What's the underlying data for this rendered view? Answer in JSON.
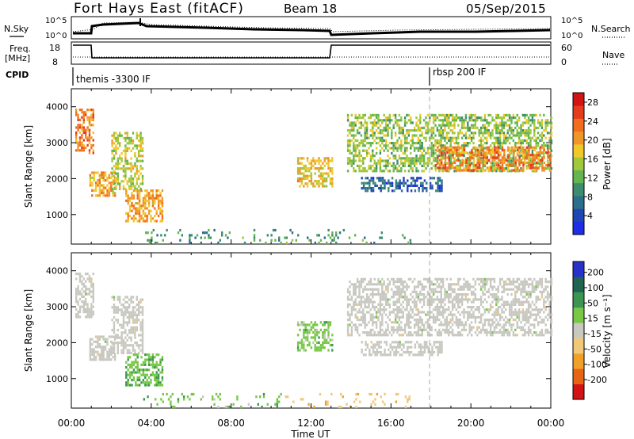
{
  "header": {
    "title": "Fort Hays East (fitACF)",
    "beam": "Beam 18",
    "date": "05/Sep/2015"
  },
  "summary_panels": {
    "nsky_label": "N.Sky",
    "nsearch_label": "N.Search",
    "freq_label_top": "Freq.",
    "freq_label_unit": "[MHz]",
    "nave_label": "Nave",
    "cpid_label": "CPID",
    "noise_ticks": [
      "10^5",
      "10^0"
    ],
    "freq_ticks": [
      "18",
      "8"
    ],
    "nave_ticks": [
      "60",
      "0"
    ],
    "cpid_modes": [
      {
        "label": "themis -3300 IF",
        "start_hour": 0
      },
      {
        "label": "rbsp 200 IF",
        "start_hour": 18
      }
    ]
  },
  "colors": {
    "power_scale": [
      "#1e2de6",
      "#1e46b4",
      "#2d6e8c",
      "#3c8c6e",
      "#64b450",
      "#a0c83c",
      "#f0c828",
      "#f09628",
      "#f06e1e",
      "#e63c1e",
      "#d21414"
    ],
    "velocity_scale": [
      "#2832c8",
      "#1e6450",
      "#3c9650",
      "#78c846",
      "#c8c8c0",
      "#f0c878",
      "#f0a028",
      "#e66414",
      "#d21414"
    ],
    "ground_scatter": "#c8c8c0"
  },
  "chart_data": [
    {
      "type": "heatmap",
      "panel": "power",
      "xlabel": "Time UT",
      "ylabel": "Slant Range [km]",
      "x_ticks": [
        "00:00",
        "04:00",
        "08:00",
        "12:00",
        "16:00",
        "20:00",
        "00:00"
      ],
      "x_range_hours": [
        0,
        24
      ],
      "y_ticks": [
        1000,
        2000,
        3000,
        4000
      ],
      "y_range_km": [
        180,
        4500
      ],
      "colorbar_label": "Power [dB]",
      "colorbar_ticks": [
        4,
        8,
        12,
        16,
        20,
        24,
        28
      ],
      "colorbar_range": [
        0,
        30
      ],
      "regions": [
        {
          "t0": 0.2,
          "t1": 1.1,
          "r0": 2700,
          "r1": 3950,
          "v": 22
        },
        {
          "t0": 0.9,
          "t1": 2.2,
          "r0": 1500,
          "r1": 2200,
          "v": 20
        },
        {
          "t0": 2.0,
          "t1": 3.6,
          "r0": 1700,
          "r1": 3300,
          "v": 16
        },
        {
          "t0": 2.7,
          "t1": 4.6,
          "r0": 850,
          "r1": 1700,
          "v": 20
        },
        {
          "t0": 11.3,
          "t1": 13.1,
          "r0": 1800,
          "r1": 2600,
          "v": 18
        },
        {
          "t0": 13.8,
          "t1": 24.0,
          "r0": 2200,
          "r1": 3800,
          "v": 14
        },
        {
          "t0": 14.5,
          "t1": 18.5,
          "r0": 1650,
          "r1": 2050,
          "v": 6
        },
        {
          "t0": 18.2,
          "t1": 24.0,
          "r0": 2200,
          "r1": 2900,
          "v": 22
        },
        {
          "t0": 3.5,
          "t1": 17.0,
          "r0": 200,
          "r1": 600,
          "v": 10
        }
      ]
    },
    {
      "type": "heatmap",
      "panel": "velocity",
      "xlabel": "Time UT",
      "ylabel": "Slant Range [km]",
      "x_ticks": [
        "00:00",
        "04:00",
        "08:00",
        "12:00",
        "16:00",
        "20:00",
        "00:00"
      ],
      "x_range_hours": [
        0,
        24
      ],
      "y_ticks": [
        1000,
        2000,
        3000,
        4000
      ],
      "y_range_km": [
        180,
        4500
      ],
      "colorbar_label": "Velocity [m s⁻¹]",
      "colorbar_ticks": [
        200,
        100,
        50,
        15,
        -15,
        -50,
        -100,
        -200
      ],
      "regions": [
        {
          "t0": 0.2,
          "t1": 1.1,
          "r0": 2700,
          "r1": 3950,
          "v": 0,
          "gs": true
        },
        {
          "t0": 0.9,
          "t1": 2.2,
          "r0": 1500,
          "r1": 2200,
          "v": 0,
          "gs": true
        },
        {
          "t0": 2.0,
          "t1": 3.6,
          "r0": 1700,
          "r1": 3300,
          "v": 0,
          "gs": true
        },
        {
          "t0": 2.7,
          "t1": 4.6,
          "r0": 850,
          "r1": 1700,
          "v": 40
        },
        {
          "t0": 11.3,
          "t1": 13.1,
          "r0": 1800,
          "r1": 2600,
          "v": 30
        },
        {
          "t0": 13.8,
          "t1": 24.0,
          "r0": 2200,
          "r1": 3800,
          "v": 0,
          "gs": true
        },
        {
          "t0": 14.5,
          "t1": 18.5,
          "r0": 1650,
          "r1": 2050,
          "v": 0,
          "gs": true
        },
        {
          "t0": 3.5,
          "t1": 10.5,
          "r0": 200,
          "r1": 600,
          "v": 35
        },
        {
          "t0": 10.5,
          "t1": 17.0,
          "r0": 200,
          "r1": 600,
          "v": -40
        }
      ]
    }
  ]
}
